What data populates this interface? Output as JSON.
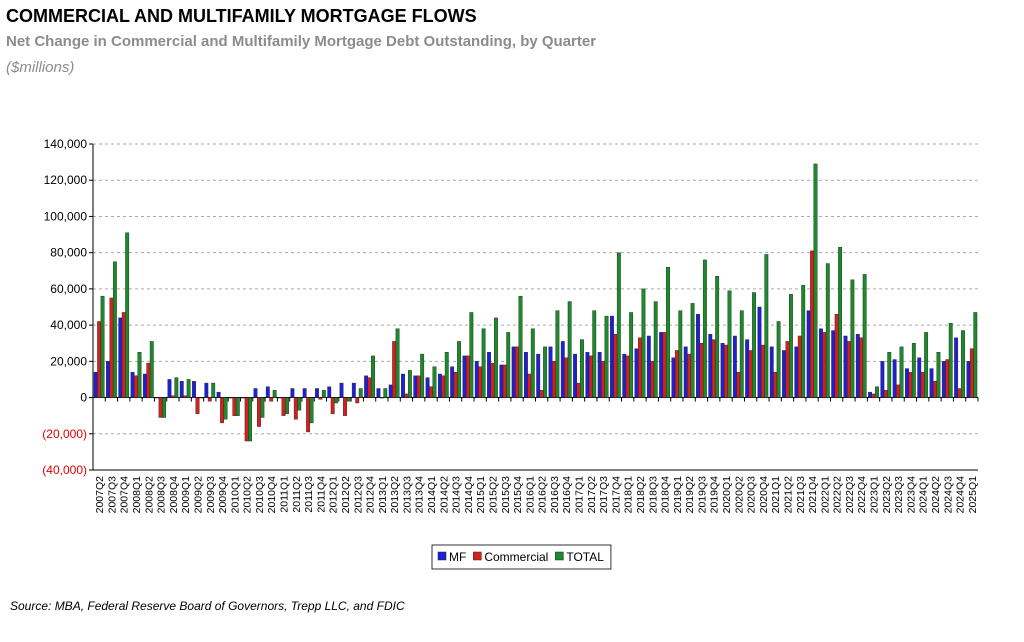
{
  "chart_data": {
    "type": "bar",
    "title": "COMMERCIAL AND MULTIFAMILY MORTGAGE FLOWS",
    "subtitle": "Net Change in Commercial and Multifamily Mortgage Debt Outstanding, by Quarter",
    "unit_label": "($millions)",
    "source": "Source:  MBA, Federal Reserve Board of Governors, Trepp LLC, and FDIC",
    "categories": [
      "2007Q2",
      "2007Q3",
      "2007Q4",
      "2008Q1",
      "2008Q2",
      "2008Q3",
      "2008Q4",
      "2009Q1",
      "2009Q2",
      "2009Q3",
      "2009Q4",
      "2010Q1",
      "2010Q2",
      "2010Q3",
      "2010Q4",
      "2011Q1",
      "2011Q2",
      "2011Q3",
      "2011Q4",
      "2012Q1",
      "2012Q2",
      "2012Q3",
      "2012Q4",
      "2013Q1",
      "2013Q2",
      "2013Q3",
      "2013Q4",
      "2014Q1",
      "2014Q2",
      "2014Q3",
      "2014Q4",
      "2015Q1",
      "2015Q2",
      "2015Q3",
      "2015Q4",
      "2016Q1",
      "2016Q2",
      "2016Q3",
      "2016Q4",
      "2017Q1",
      "2017Q2",
      "2017Q3",
      "2017Q4",
      "2018Q1",
      "2018Q2",
      "2018Q3",
      "2018Q4",
      "2019Q1",
      "2019Q2",
      "2019Q3",
      "2019Q4",
      "2020Q1",
      "2020Q2",
      "2020Q3",
      "2020Q4",
      "2021Q1",
      "2021Q2",
      "2021Q3",
      "2021Q4",
      "2022Q1",
      "2022Q2",
      "2022Q3",
      "2022Q4",
      "2023Q1",
      "2023Q2",
      "2023Q3",
      "2023Q4",
      "2024Q1",
      "2024Q2",
      "2024Q3",
      "2024Q4",
      "2025Q1"
    ],
    "series": [
      {
        "name": "MF",
        "color": "#1f1fd6",
        "values": [
          14000,
          20000,
          44000,
          14000,
          13000,
          0,
          10000,
          9000,
          9000,
          8000,
          3000,
          0,
          0,
          5000,
          6000,
          0,
          5000,
          5000,
          5000,
          6000,
          8000,
          8000,
          12000,
          5000,
          7000,
          13000,
          12000,
          11000,
          13000,
          17000,
          23000,
          20000,
          25000,
          18000,
          28000,
          25000,
          24000,
          28000,
          31000,
          24000,
          25000,
          25000,
          45000,
          24000,
          27000,
          34000,
          36000,
          22000,
          28000,
          46000,
          35000,
          30000,
          34000,
          32000,
          50000,
          28000,
          26000,
          28000,
          48000,
          38000,
          37000,
          34000,
          35000,
          3000,
          20000,
          21000,
          16000,
          22000,
          16000,
          20000,
          33000,
          20000
        ]
      },
      {
        "name": "Commercial",
        "color": "#d62020",
        "values": [
          42000,
          55000,
          47000,
          12000,
          19000,
          -11000,
          1000,
          1000,
          -9000,
          -2000,
          -14000,
          -10000,
          -24000,
          -16000,
          -2000,
          -10000,
          -12000,
          -19000,
          -1000,
          -9000,
          -10000,
          -3000,
          11000,
          0,
          31000,
          2000,
          12000,
          6000,
          12000,
          14000,
          23000,
          17000,
          19000,
          18000,
          28000,
          13000,
          4000,
          20000,
          22000,
          8000,
          23000,
          20000,
          35000,
          23000,
          33000,
          20000,
          36000,
          26000,
          24000,
          30000,
          32000,
          29000,
          14000,
          26000,
          29000,
          14000,
          31000,
          34000,
          81000,
          36000,
          46000,
          31000,
          33000,
          2000,
          4000,
          7000,
          14000,
          14000,
          9000,
          21000,
          5000,
          27000
        ]
      },
      {
        "name": "TOTAL",
        "color": "#1a8a2a",
        "values": [
          56000,
          75000,
          91000,
          25000,
          31000,
          -11000,
          11000,
          10000,
          0,
          8000,
          -12000,
          -10000,
          -24000,
          -11000,
          4000,
          -9000,
          -7000,
          -14000,
          4000,
          -3000,
          -2000,
          5000,
          23000,
          5000,
          38000,
          15000,
          24000,
          17000,
          25000,
          31000,
          47000,
          38000,
          44000,
          36000,
          56000,
          38000,
          28000,
          48000,
          53000,
          32000,
          48000,
          45000,
          80000,
          47000,
          60000,
          53000,
          72000,
          48000,
          52000,
          76000,
          67000,
          59000,
          48000,
          58000,
          79000,
          42000,
          57000,
          62000,
          129000,
          74000,
          83000,
          65000,
          68000,
          6000,
          25000,
          28000,
          30000,
          36000,
          25000,
          41000,
          37000,
          47000
        ]
      }
    ],
    "ylim": [
      -40000,
      140000
    ],
    "yticks": [
      {
        "value": -40000,
        "label": "(40,000)"
      },
      {
        "value": -20000,
        "label": "(20,000)"
      },
      0,
      {
        "value": 20000,
        "label": "20,000"
      },
      {
        "value": 40000,
        "label": "40,000"
      },
      {
        "value": 60000,
        "label": "60,000"
      },
      {
        "value": 80000,
        "label": "80,000"
      },
      {
        "value": 100000,
        "label": "100,000"
      },
      {
        "value": 120000,
        "label": "120,000"
      },
      {
        "value": 140000,
        "label": "140,000"
      }
    ],
    "grid": true,
    "legend": "bottom"
  }
}
